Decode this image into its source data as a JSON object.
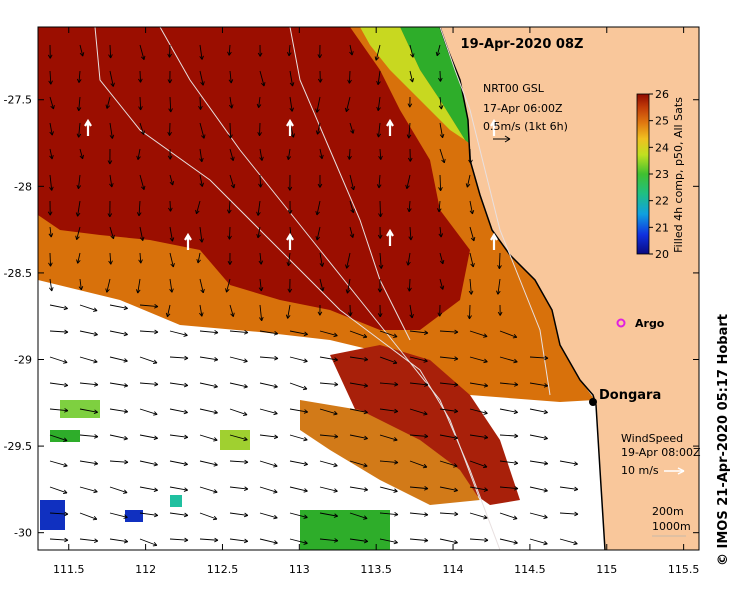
{
  "map": {
    "title": "19-Apr-2020 08Z",
    "credit": "© IMOS 21-Apr-2020 05:17 Hobart",
    "lon_ticks": [
      "111.5",
      "112",
      "112.5",
      "113",
      "113.5",
      "114",
      "114.5",
      "115",
      "115.5"
    ],
    "lat_ticks": [
      "-27.5",
      "-28",
      "-28.5",
      "-29",
      "-29.5",
      "-30"
    ],
    "lon_range": [
      111.3,
      115.6
    ],
    "lat_range": [
      -27.08,
      -30.1
    ],
    "colorbar": {
      "label": "Filled 4h comp, p50, All Sats",
      "min": 20,
      "max": 26,
      "ticks": [
        "26",
        "25",
        "24",
        "23",
        "22",
        "21",
        "20"
      ]
    },
    "currents": {
      "title": "NRT00 GSL",
      "date": "17-Apr 06:00Z",
      "scale": "0.5m/s (1kt 6h)"
    },
    "wind": {
      "title": "WindSpeed",
      "date": "19-Apr 08:00Z",
      "scale": "10 m/s"
    },
    "contours": [
      "200m",
      "1000m"
    ],
    "places": [
      {
        "name": "Dongara",
        "lon": 114.93,
        "lat": -29.25
      },
      {
        "name": "Argo",
        "lon": 115.1,
        "lat": -28.83
      }
    ],
    "colors": {
      "land": "#F9C79B",
      "sea_warm": "#9B0E00",
      "sea_mid": "#D8710B",
      "sea_cool": "#2EAD2A",
      "argo": "#E020E0",
      "coast": "#000000"
    }
  }
}
